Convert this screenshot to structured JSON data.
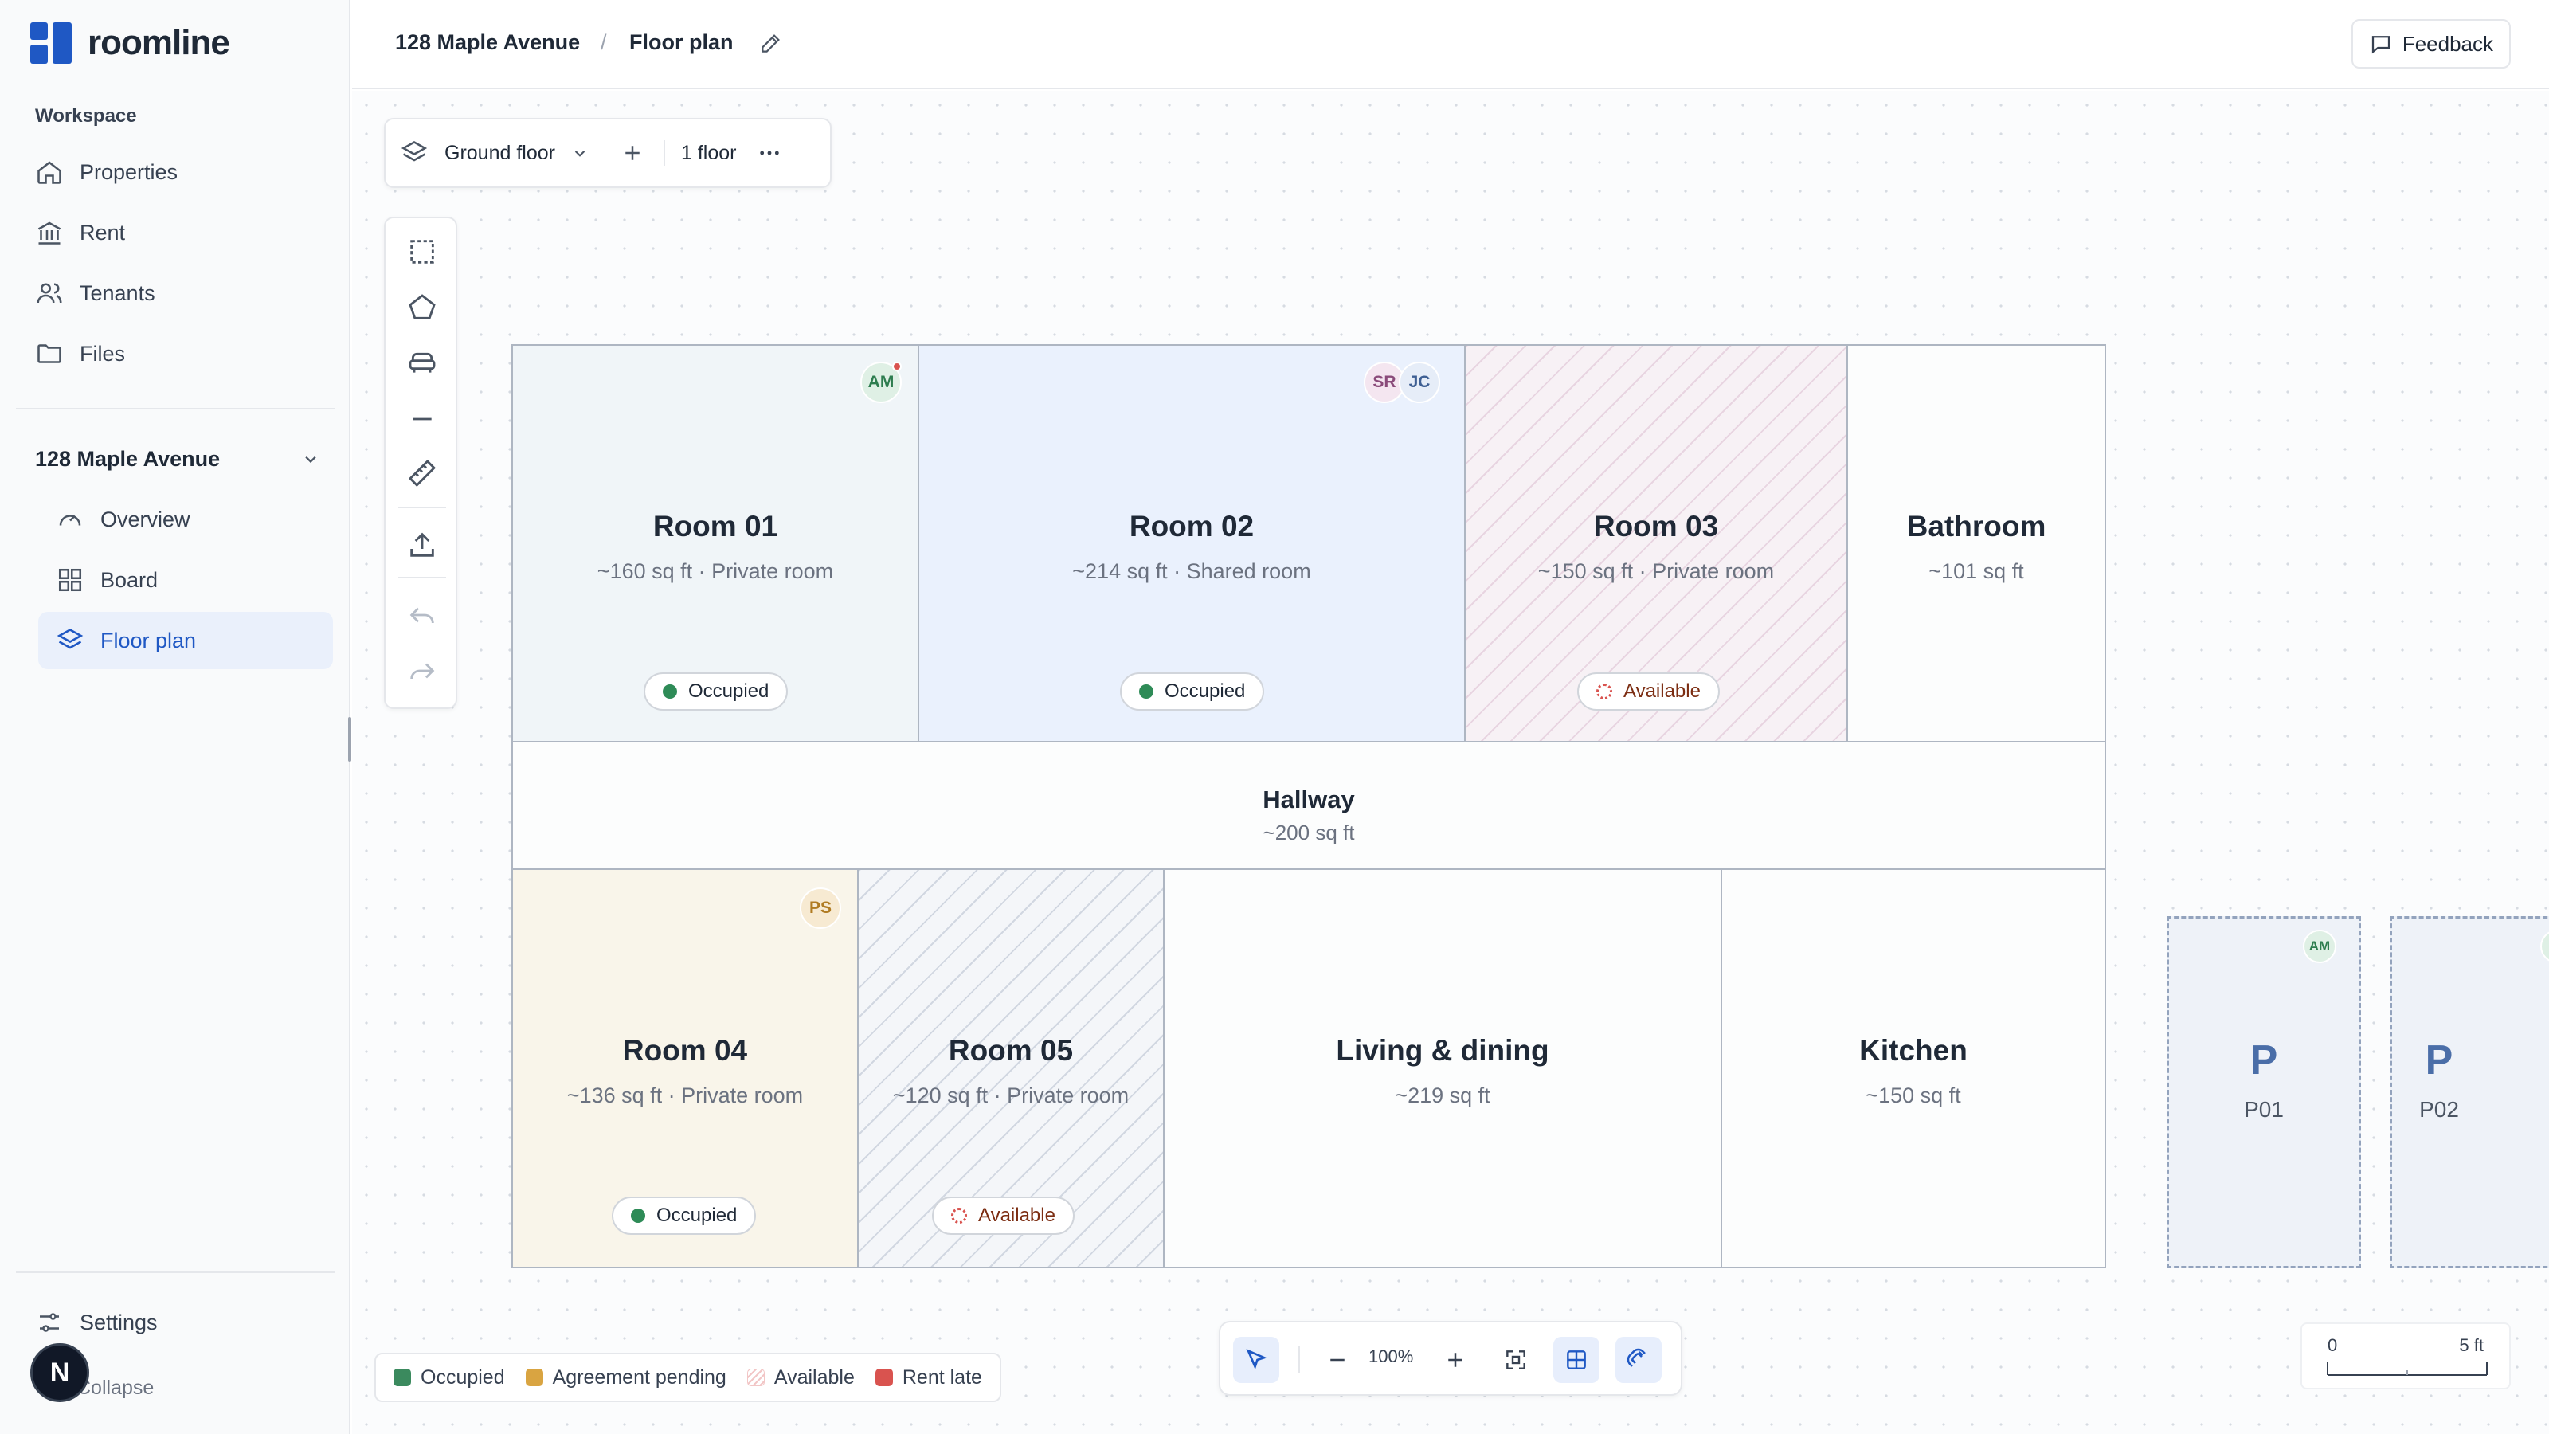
{
  "app": {
    "name": "roomline"
  },
  "sidebar": {
    "section_label": "Workspace",
    "nav": [
      {
        "label": "Properties",
        "icon": "home-icon"
      },
      {
        "label": "Rent",
        "icon": "bank-icon"
      },
      {
        "label": "Tenants",
        "icon": "users-icon"
      },
      {
        "label": "Files",
        "icon": "folder-icon"
      }
    ],
    "property": {
      "name": "128 Maple Avenue",
      "items": [
        {
          "label": "Overview",
          "icon": "gauge-icon"
        },
        {
          "label": "Board",
          "icon": "grid-icon"
        },
        {
          "label": "Floor plan",
          "icon": "layers-icon",
          "active": true
        }
      ]
    },
    "settings_label": "Settings",
    "collapse_label": "Collapse",
    "user_initial": "N"
  },
  "header": {
    "breadcrumb": [
      "128 Maple Avenue",
      "Floor plan"
    ],
    "separator": "/",
    "feedback_label": "Feedback"
  },
  "floor_toolbar": {
    "floor_name": "Ground floor",
    "floor_count": "1 floor"
  },
  "rooms": [
    {
      "name": "Room 01",
      "info": "~160 sq ft · Private room",
      "status": "Occupied",
      "tenants": [
        "AM"
      ]
    },
    {
      "name": "Room 02",
      "info": "~214 sq ft · Shared room",
      "status": "Occupied",
      "tenants": [
        "SR",
        "JC"
      ]
    },
    {
      "name": "Room 03",
      "info": "~150 sq ft · Private room",
      "status": "Available"
    },
    {
      "name": "Bathroom",
      "info": "~101 sq ft"
    },
    {
      "name": "Hallway",
      "info": "~200 sq ft"
    },
    {
      "name": "Room 04",
      "info": "~136 sq ft · Private room",
      "status": "Occupied",
      "tenants": [
        "PS"
      ]
    },
    {
      "name": "Room 05",
      "info": "~120 sq ft · Private room",
      "status": "Available"
    },
    {
      "name": "Living & dining",
      "info": "~219 sq ft"
    },
    {
      "name": "Kitchen",
      "info": "~150 sq ft"
    }
  ],
  "parking": [
    {
      "glyph": "P",
      "label": "P01",
      "tenant": "AM"
    },
    {
      "glyph": "P",
      "label": "P02"
    }
  ],
  "legend": [
    {
      "label": "Occupied",
      "color": "#3b8a5e"
    },
    {
      "label": "Agreement pending",
      "color": "#d9a441"
    },
    {
      "label": "Available",
      "color": "#f2c6c6"
    },
    {
      "label": "Rent late",
      "color": "#d9534f"
    }
  ],
  "zoom": {
    "level": "100%"
  },
  "scale": {
    "start": "0",
    "end": "5 ft"
  },
  "colors": {
    "accent": "#1f58c4",
    "occupied": "#2e8b57",
    "available": "#d9534f"
  }
}
